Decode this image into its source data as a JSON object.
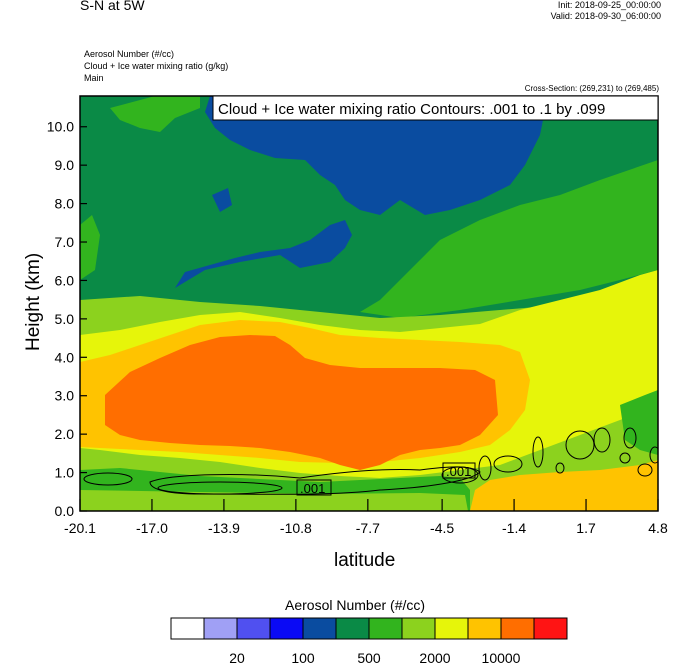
{
  "header": {
    "title": "S-N at 5W",
    "init": "Init: 2018-09-25_00:00:00",
    "valid": "Valid: 2018-09-30_06:00:00",
    "fields": [
      "Aerosol Number   (#/cc)",
      "Cloud + Ice water mixing ratio   (g/kg)",
      "Main"
    ],
    "cross_section": "Cross-Section: (269,231) to (269,485)"
  },
  "chart_data": {
    "type": "heatmap",
    "title": "S-N at 5W",
    "xlabel": "latitude",
    "ylabel": "Height (km)",
    "x_ticks": [
      "-20.1",
      "-17.0",
      "-13.9",
      "-10.8",
      "-7.7",
      "-4.5",
      "-1.4",
      "1.7",
      "4.8"
    ],
    "y_ticks": [
      "0.0",
      "1.0",
      "2.0",
      "3.0",
      "4.0",
      "5.0",
      "6.0",
      "7.0",
      "8.0",
      "9.0",
      "10.0"
    ],
    "xlim": [
      -20.1,
      4.8
    ],
    "ylim": [
      0.0,
      10.8
    ],
    "grid": false,
    "contour_info": "Cloud + Ice water mixing ratio Contours: .001 to .1 by .099",
    "contour_labels": [
      ".001",
      ".001"
    ],
    "colorbar": {
      "title": "Aerosol Number  (#/cc)",
      "labels": [
        "20",
        "100",
        "500",
        "2000",
        "10000"
      ],
      "colors": [
        "#ffffff",
        "#a0a0f5",
        "#5050f0",
        "#0a0af5",
        "#0a4ca0",
        "#0a8a46",
        "#32b41e",
        "#8cd21e",
        "#e6f50a",
        "#ffc300",
        "#ff6e00",
        "#ff1414"
      ]
    }
  }
}
